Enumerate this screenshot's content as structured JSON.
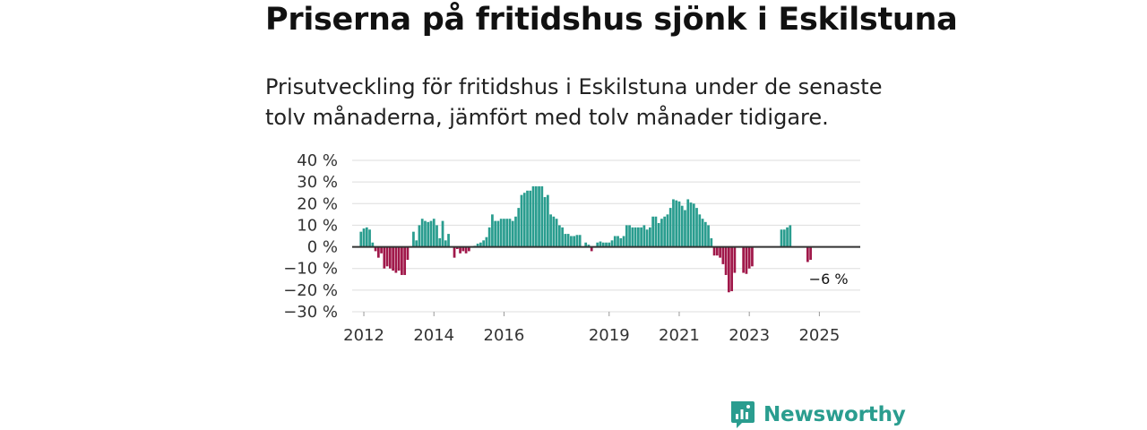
{
  "header": {
    "title": "Priserna på fritidshus sjönk i Eskilstuna",
    "subtitle": "Prisutveckling för fritidshus i Eskilstuna under de senaste tolv månaderna, jämfört med tolv månader tidigare."
  },
  "brand": {
    "name": "Newsworthy",
    "icon": "newsworthy-logo-icon"
  },
  "colors": {
    "positive": "#2a9d8f",
    "negative": "#a0184a",
    "grid": "#dddddd",
    "zero_line": "#333333"
  },
  "chart_data": {
    "type": "bar",
    "title": "Priserna på fritidshus sjönk i Eskilstuna",
    "xlabel": "",
    "ylabel": "",
    "ylim": [
      -30,
      40
    ],
    "y_ticks": [
      40,
      30,
      20,
      10,
      0,
      -10,
      -20,
      -30
    ],
    "y_tick_labels": [
      "40 %",
      "30 %",
      "20 %",
      "10 %",
      "0 %",
      "−10 %",
      "−20 %",
      "−30 %"
    ],
    "x_ticks": [
      "2012",
      "2014",
      "2016",
      "2019",
      "2021",
      "2023",
      "2025"
    ],
    "x_range": [
      "2011-09",
      "2026-03"
    ],
    "series": [
      {
        "name": "Prisutveckling",
        "start": "2011-12",
        "values": [
          7,
          8.5,
          9,
          8,
          2,
          -2,
          -5,
          -3,
          -10,
          -9,
          -10,
          -11,
          -12,
          -11,
          -13,
          -13,
          -6,
          null,
          7,
          3,
          10,
          13,
          12,
          11.5,
          12,
          13,
          10,
          4,
          12,
          3,
          6,
          null,
          -5,
          -1,
          -3,
          -2,
          -3,
          -2,
          null,
          0.5,
          1.5,
          2,
          3,
          4.5,
          9,
          15,
          12,
          12,
          13,
          13,
          13,
          13,
          12,
          14,
          18,
          24,
          25,
          26,
          26,
          28,
          28,
          28,
          28,
          23,
          24,
          15,
          14,
          13,
          10,
          9,
          6,
          6,
          5,
          5,
          5.5,
          5.5,
          null,
          2,
          1,
          -2,
          null,
          2,
          2.5,
          2,
          2,
          2,
          3,
          5,
          5,
          4,
          5,
          10,
          10,
          9,
          9,
          9,
          9,
          10,
          8,
          9,
          14,
          14,
          11,
          13,
          14,
          15,
          18,
          22,
          21.5,
          21,
          19,
          17,
          22,
          20.5,
          20,
          18,
          15,
          13,
          11.5,
          10,
          4,
          -4,
          -4,
          -5,
          -8,
          -13,
          -21,
          -20.5,
          -12,
          null,
          null,
          -12,
          -12.5,
          -10,
          -9,
          null,
          null,
          null,
          null,
          null,
          null,
          null,
          null,
          null,
          8,
          8,
          9,
          10,
          null,
          null,
          null,
          null,
          null,
          -7,
          -6
        ]
      }
    ],
    "annotations": [
      {
        "label": "−6 %",
        "target": "last"
      }
    ]
  }
}
